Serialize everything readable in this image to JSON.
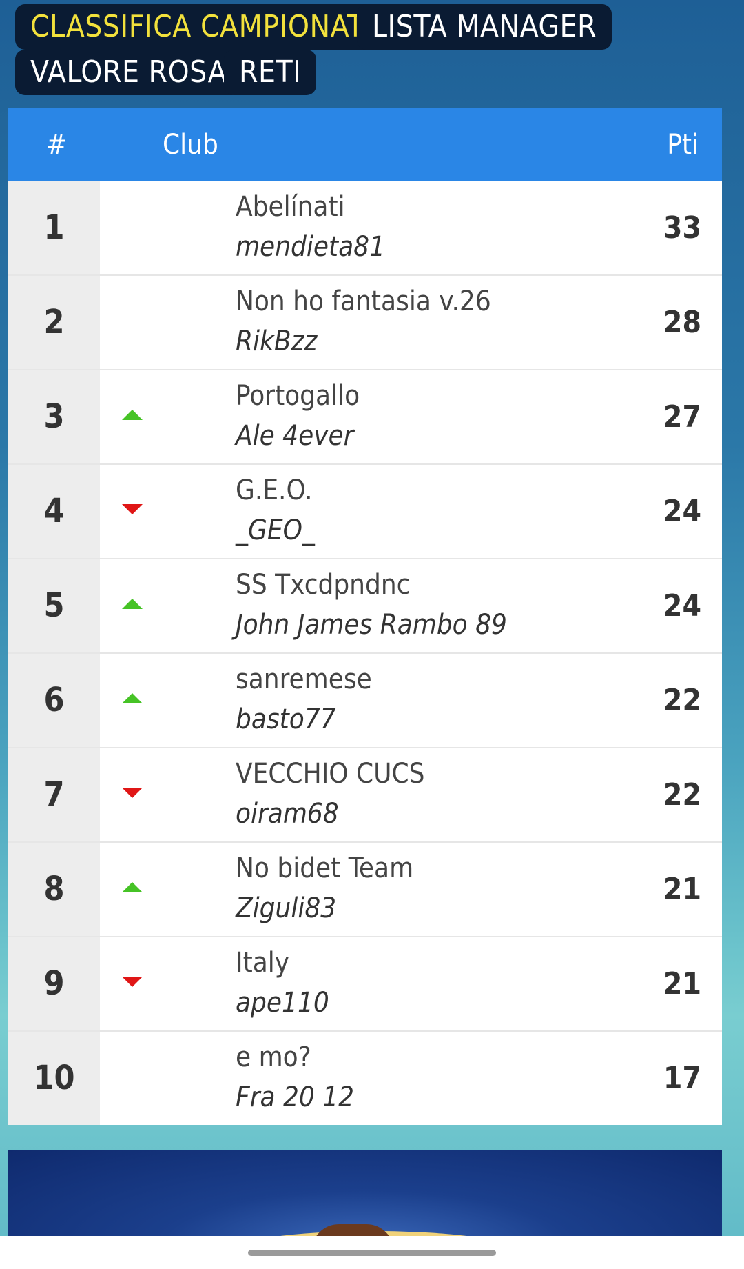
{
  "tabs": [
    {
      "label": "CLASSIFICA CAMPIONATO",
      "active": true
    },
    {
      "label": "LISTA MANAGER",
      "active": false
    },
    {
      "label": "VALORE ROSA",
      "active": false
    },
    {
      "label": "RETI",
      "active": false
    }
  ],
  "table": {
    "header": {
      "rank": "#",
      "club": "Club",
      "points": "Pti"
    },
    "rows": [
      {
        "rank": "1",
        "trend": "none",
        "club": "Abelínati",
        "manager": "mendieta81",
        "points": "33"
      },
      {
        "rank": "2",
        "trend": "none",
        "club": "Non ho fantasia v.26",
        "manager": "RikBzz",
        "points": "28"
      },
      {
        "rank": "3",
        "trend": "up",
        "club": "Portogallo",
        "manager": "Ale 4ever",
        "points": "27"
      },
      {
        "rank": "4",
        "trend": "down",
        "club": "G.E.O.",
        "manager": "_GEO_",
        "points": "24"
      },
      {
        "rank": "5",
        "trend": "up",
        "club": "SS Txcdpndnc",
        "manager": "John James Rambo 89",
        "points": "24"
      },
      {
        "rank": "6",
        "trend": "up",
        "club": "sanremese",
        "manager": "basto77",
        "points": "22"
      },
      {
        "rank": "7",
        "trend": "down",
        "club": "VECCHIO CUCS",
        "manager": "oiram68",
        "points": "22"
      },
      {
        "rank": "8",
        "trend": "up",
        "club": "No bidet Team",
        "manager": "Ziguli83",
        "points": "21"
      },
      {
        "rank": "9",
        "trend": "down",
        "club": "Italy",
        "manager": "ape110",
        "points": "21"
      },
      {
        "rank": "10",
        "trend": "none",
        "club": "e mo?",
        "manager": "Fra 20 12",
        "points": "17"
      }
    ]
  },
  "colors": {
    "active_tab_text": "#f2e13c",
    "tab_background": "#0a1b33",
    "header_background": "#2a86e6",
    "trend_up": "#46c326",
    "trend_down": "#e01616"
  },
  "icons": {
    "up": "triangle-up-icon",
    "down": "triangle-down-icon"
  }
}
